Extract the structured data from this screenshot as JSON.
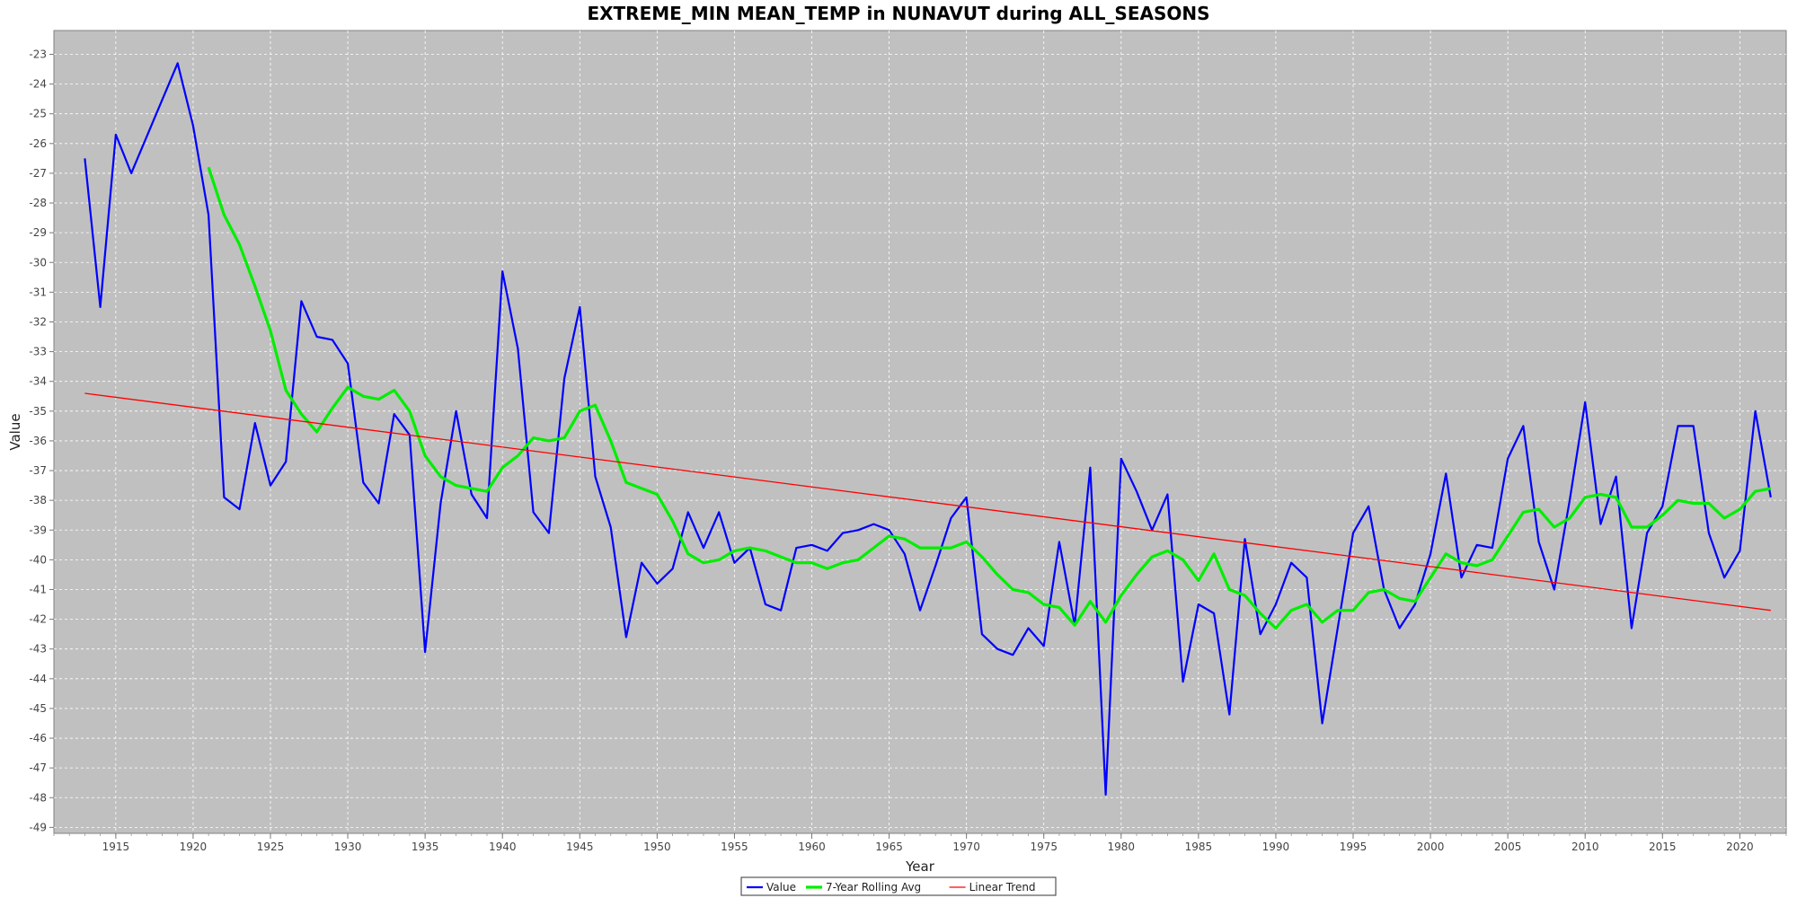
{
  "chart_data": {
    "type": "line",
    "title": "EXTREME_MIN MEAN_TEMP in NUNAVUT during ALL_SEASONS",
    "xlabel": "Year",
    "ylabel": "Value",
    "xlim": [
      1911,
      2023
    ],
    "ylim": [
      -49.2,
      -22.2
    ],
    "x_ticks": [
      1915,
      1920,
      1925,
      1930,
      1935,
      1940,
      1945,
      1950,
      1955,
      1960,
      1965,
      1970,
      1975,
      1980,
      1985,
      1990,
      1995,
      2000,
      2005,
      2010,
      2015,
      2020
    ],
    "y_ticks": [
      -23,
      -24,
      -25,
      -26,
      -27,
      -28,
      -29,
      -30,
      -31,
      -32,
      -33,
      -34,
      -35,
      -36,
      -37,
      -38,
      -39,
      -40,
      -41,
      -42,
      -43,
      -44,
      -45,
      -46,
      -47,
      -48,
      -49
    ],
    "grid": true,
    "legend_position": "bottom-center",
    "background_color": "#c0c0c0",
    "series": [
      {
        "name": "Value",
        "color": "#0000ff",
        "points": [
          [
            1913,
            -26.5
          ],
          [
            1914,
            -31.5
          ],
          [
            1915,
            -25.7
          ],
          [
            1916,
            -27.0
          ],
          [
            1919,
            -23.3
          ],
          [
            1920,
            -25.4
          ],
          [
            1921,
            -28.4
          ],
          [
            1922,
            -37.9
          ],
          [
            1923,
            -38.3
          ],
          [
            1924,
            -35.4
          ],
          [
            1925,
            -37.5
          ],
          [
            1926,
            -36.7
          ],
          [
            1927,
            -31.3
          ],
          [
            1928,
            -32.5
          ],
          [
            1929,
            -32.6
          ],
          [
            1930,
            -33.4
          ],
          [
            1931,
            -37.4
          ],
          [
            1932,
            -38.1
          ],
          [
            1933,
            -35.1
          ],
          [
            1934,
            -35.8
          ],
          [
            1935,
            -43.1
          ],
          [
            1936,
            -38.1
          ],
          [
            1937,
            -35.0
          ],
          [
            1938,
            -37.8
          ],
          [
            1939,
            -38.6
          ],
          [
            1940,
            -30.3
          ],
          [
            1941,
            -32.9
          ],
          [
            1942,
            -38.4
          ],
          [
            1943,
            -39.1
          ],
          [
            1944,
            -33.9
          ],
          [
            1945,
            -31.5
          ],
          [
            1946,
            -37.2
          ],
          [
            1947,
            -38.9
          ],
          [
            1948,
            -42.6
          ],
          [
            1949,
            -40.1
          ],
          [
            1950,
            -40.8
          ],
          [
            1951,
            -40.3
          ],
          [
            1952,
            -38.4
          ],
          [
            1953,
            -39.6
          ],
          [
            1954,
            -38.4
          ],
          [
            1955,
            -40.1
          ],
          [
            1956,
            -39.6
          ],
          [
            1957,
            -41.5
          ],
          [
            1958,
            -41.7
          ],
          [
            1959,
            -39.6
          ],
          [
            1960,
            -39.5
          ],
          [
            1961,
            -39.7
          ],
          [
            1962,
            -39.1
          ],
          [
            1963,
            -39.0
          ],
          [
            1964,
            -38.8
          ],
          [
            1965,
            -39.0
          ],
          [
            1966,
            -39.8
          ],
          [
            1967,
            -41.7
          ],
          [
            1968,
            -40.2
          ],
          [
            1969,
            -38.6
          ],
          [
            1970,
            -37.9
          ],
          [
            1971,
            -42.5
          ],
          [
            1972,
            -43.0
          ],
          [
            1973,
            -43.2
          ],
          [
            1974,
            -42.3
          ],
          [
            1975,
            -42.9
          ],
          [
            1976,
            -39.4
          ],
          [
            1977,
            -42.2
          ],
          [
            1978,
            -36.9
          ],
          [
            1979,
            -47.9
          ],
          [
            1980,
            -36.6
          ],
          [
            1981,
            -37.7
          ],
          [
            1982,
            -39.0
          ],
          [
            1983,
            -37.8
          ],
          [
            1984,
            -44.1
          ],
          [
            1985,
            -41.5
          ],
          [
            1986,
            -41.8
          ],
          [
            1987,
            -45.2
          ],
          [
            1988,
            -39.3
          ],
          [
            1989,
            -42.5
          ],
          [
            1990,
            -41.5
          ],
          [
            1991,
            -40.1
          ],
          [
            1992,
            -40.6
          ],
          [
            1993,
            -45.5
          ],
          [
            1994,
            -42.3
          ],
          [
            1995,
            -39.1
          ],
          [
            1996,
            -38.2
          ],
          [
            1997,
            -41.0
          ],
          [
            1998,
            -42.3
          ],
          [
            1999,
            -41.5
          ],
          [
            2000,
            -39.8
          ],
          [
            2001,
            -37.1
          ],
          [
            2002,
            -40.6
          ],
          [
            2003,
            -39.5
          ],
          [
            2004,
            -39.6
          ],
          [
            2005,
            -36.6
          ],
          [
            2006,
            -35.5
          ],
          [
            2007,
            -39.4
          ],
          [
            2008,
            -41.0
          ],
          [
            2009,
            -38.0
          ],
          [
            2010,
            -34.7
          ],
          [
            2011,
            -38.8
          ],
          [
            2012,
            -37.2
          ],
          [
            2013,
            -42.3
          ],
          [
            2014,
            -39.1
          ],
          [
            2015,
            -38.2
          ],
          [
            2016,
            -35.5
          ],
          [
            2017,
            -35.5
          ],
          [
            2018,
            -39.1
          ],
          [
            2019,
            -40.6
          ],
          [
            2020,
            -39.7
          ],
          [
            2021,
            -35.0
          ],
          [
            2022,
            -37.9
          ]
        ]
      },
      {
        "name": "7-Year Rolling Avg",
        "color": "#00ee00",
        "points": [
          [
            1921,
            -26.8
          ],
          [
            1922,
            -28.4
          ],
          [
            1923,
            -29.4
          ],
          [
            1924,
            -30.8
          ],
          [
            1925,
            -32.3
          ],
          [
            1926,
            -34.3
          ],
          [
            1927,
            -35.1
          ],
          [
            1928,
            -35.7
          ],
          [
            1929,
            -34.9
          ],
          [
            1930,
            -34.2
          ],
          [
            1931,
            -34.5
          ],
          [
            1932,
            -34.6
          ],
          [
            1933,
            -34.3
          ],
          [
            1934,
            -35.0
          ],
          [
            1935,
            -36.5
          ],
          [
            1936,
            -37.2
          ],
          [
            1937,
            -37.5
          ],
          [
            1938,
            -37.6
          ],
          [
            1939,
            -37.7
          ],
          [
            1940,
            -36.9
          ],
          [
            1941,
            -36.5
          ],
          [
            1942,
            -35.9
          ],
          [
            1943,
            -36.0
          ],
          [
            1944,
            -35.9
          ],
          [
            1945,
            -35.0
          ],
          [
            1946,
            -34.8
          ],
          [
            1947,
            -36.0
          ],
          [
            1948,
            -37.4
          ],
          [
            1949,
            -37.6
          ],
          [
            1950,
            -37.8
          ],
          [
            1951,
            -38.7
          ],
          [
            1952,
            -39.8
          ],
          [
            1953,
            -40.1
          ],
          [
            1954,
            -40.0
          ],
          [
            1955,
            -39.7
          ],
          [
            1956,
            -39.6
          ],
          [
            1957,
            -39.7
          ],
          [
            1958,
            -39.9
          ],
          [
            1959,
            -40.1
          ],
          [
            1960,
            -40.1
          ],
          [
            1961,
            -40.3
          ],
          [
            1962,
            -40.1
          ],
          [
            1963,
            -40.0
          ],
          [
            1964,
            -39.6
          ],
          [
            1965,
            -39.2
          ],
          [
            1966,
            -39.3
          ],
          [
            1967,
            -39.6
          ],
          [
            1968,
            -39.6
          ],
          [
            1969,
            -39.6
          ],
          [
            1970,
            -39.4
          ],
          [
            1971,
            -39.9
          ],
          [
            1972,
            -40.5
          ],
          [
            1973,
            -41.0
          ],
          [
            1974,
            -41.1
          ],
          [
            1975,
            -41.5
          ],
          [
            1976,
            -41.6
          ],
          [
            1977,
            -42.2
          ],
          [
            1978,
            -41.4
          ],
          [
            1979,
            -42.1
          ],
          [
            1980,
            -41.2
          ],
          [
            1981,
            -40.5
          ],
          [
            1982,
            -39.9
          ],
          [
            1983,
            -39.7
          ],
          [
            1984,
            -40.0
          ],
          [
            1985,
            -40.7
          ],
          [
            1986,
            -39.8
          ],
          [
            1987,
            -41.0
          ],
          [
            1988,
            -41.2
          ],
          [
            1989,
            -41.8
          ],
          [
            1990,
            -42.3
          ],
          [
            1991,
            -41.7
          ],
          [
            1992,
            -41.5
          ],
          [
            1993,
            -42.1
          ],
          [
            1994,
            -41.7
          ],
          [
            1995,
            -41.7
          ],
          [
            1996,
            -41.1
          ],
          [
            1997,
            -41.0
          ],
          [
            1998,
            -41.3
          ],
          [
            1999,
            -41.4
          ],
          [
            2000,
            -40.6
          ],
          [
            2001,
            -39.8
          ],
          [
            2002,
            -40.1
          ],
          [
            2003,
            -40.2
          ],
          [
            2004,
            -40.0
          ],
          [
            2005,
            -39.2
          ],
          [
            2006,
            -38.4
          ],
          [
            2007,
            -38.3
          ],
          [
            2008,
            -38.9
          ],
          [
            2009,
            -38.6
          ],
          [
            2010,
            -37.9
          ],
          [
            2011,
            -37.8
          ],
          [
            2012,
            -37.9
          ],
          [
            2013,
            -38.9
          ],
          [
            2014,
            -38.9
          ],
          [
            2015,
            -38.5
          ],
          [
            2016,
            -38.0
          ],
          [
            2017,
            -38.1
          ],
          [
            2018,
            -38.1
          ],
          [
            2019,
            -38.6
          ],
          [
            2020,
            -38.3
          ],
          [
            2021,
            -37.7
          ],
          [
            2022,
            -37.6
          ]
        ]
      },
      {
        "name": "Linear Trend",
        "color": "#ff0000",
        "points": [
          [
            1913,
            -34.4
          ],
          [
            2022,
            -41.7
          ]
        ]
      }
    ]
  }
}
